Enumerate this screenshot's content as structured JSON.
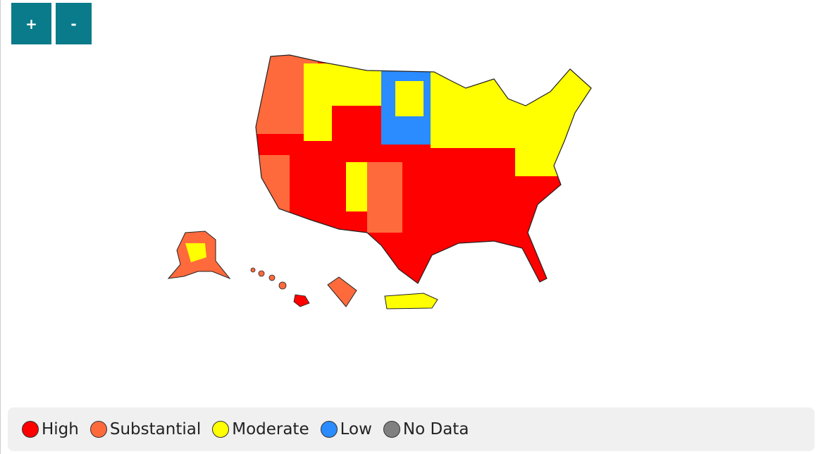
{
  "zoom_controls": {
    "zoom_in": "+",
    "zoom_out": "-"
  },
  "legend": [
    {
      "label": "High",
      "color": "#ff0000"
    },
    {
      "label": "Substantial",
      "color": "#ff6a3d"
    },
    {
      "label": "Moderate",
      "color": "#ffff00"
    },
    {
      "label": "Low",
      "color": "#2b8cff"
    },
    {
      "label": "No Data",
      "color": "#808080"
    }
  ]
}
